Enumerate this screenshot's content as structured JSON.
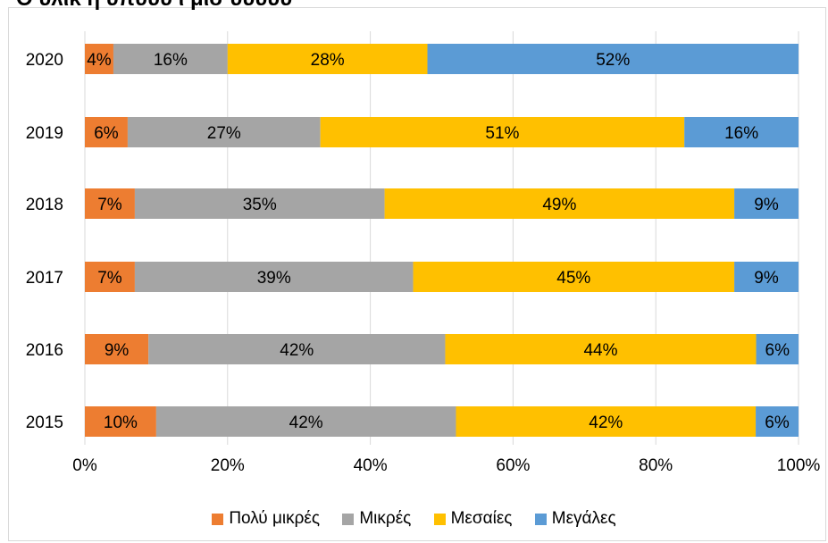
{
  "chart_data": {
    "type": "bar",
    "orientation": "horizontal",
    "stacked": "percent",
    "title": "Ο ύλικ ή υπύυυ ί μισ ύυυυυ",
    "categories": [
      "2020",
      "2019",
      "2018",
      "2017",
      "2016",
      "2015"
    ],
    "series": [
      {
        "name": "Πολύ μικρές",
        "color": "#ED7D31",
        "values": [
          4,
          6,
          7,
          7,
          9,
          10
        ]
      },
      {
        "name": "Μικρές",
        "color": "#A5A5A5",
        "values": [
          16,
          27,
          35,
          39,
          42,
          42
        ]
      },
      {
        "name": "Μεσαίες",
        "color": "#FFC000",
        "values": [
          28,
          51,
          49,
          45,
          44,
          42
        ]
      },
      {
        "name": "Μεγάλες",
        "color": "#5B9BD5",
        "values": [
          52,
          16,
          9,
          9,
          6,
          6
        ]
      }
    ],
    "xlim": [
      0,
      100
    ],
    "xticks": [
      "0%",
      "20%",
      "40%",
      "60%",
      "80%",
      "100%"
    ],
    "legend_position": "bottom",
    "grid": true
  }
}
